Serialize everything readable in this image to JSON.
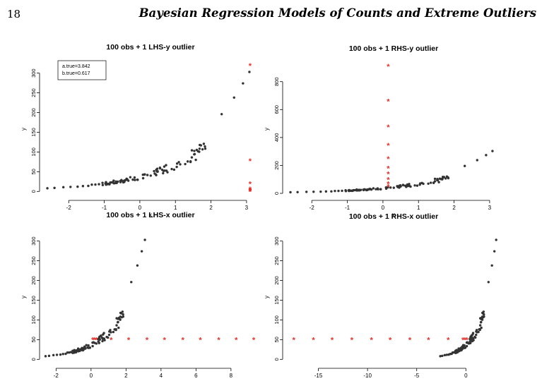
{
  "header": {
    "page_number": "18",
    "running_title": "Bayesian Regression Models of Counts and Extreme Outliers"
  },
  "colors": {
    "points": "#333333",
    "outliers": "#e8302a",
    "axis": "#000000"
  },
  "chart_data": [
    {
      "type": "scatter",
      "title": "100 obs + 1 LHS-y outlier",
      "xlabel": "x",
      "ylabel": "y",
      "xlim": [
        -2.7,
        3.3
      ],
      "ylim": [
        -12,
        328
      ],
      "xticks": [
        -2,
        -1,
        0,
        1,
        2,
        3
      ],
      "yticks": [
        0,
        50,
        100,
        150,
        200,
        250,
        300
      ],
      "legend": {
        "position": "top-left",
        "entries": [
          "a.true=3.842",
          "b.true=0.617"
        ]
      },
      "outlier_marker": "*",
      "outliers": [
        {
          "x": 3.1,
          "y": 0
        },
        {
          "x": 3.1,
          "y": 1
        },
        {
          "x": 3.1,
          "y": 2
        },
        {
          "x": 3.1,
          "y": 3
        },
        {
          "x": 3.1,
          "y": 4
        },
        {
          "x": 3.1,
          "y": 6
        },
        {
          "x": 3.1,
          "y": 20
        },
        {
          "x": 3.1,
          "y": 78
        },
        {
          "x": 3.1,
          "y": 319
        }
      ]
    },
    {
      "type": "scatter",
      "title": "100 obs + 1 RHS-y outlier",
      "xlabel": "x",
      "ylabel": "y",
      "xlim": [
        -2.7,
        3.3
      ],
      "ylim": [
        -20,
        940
      ],
      "xticks": [
        -2,
        -1,
        0,
        1,
        2,
        3
      ],
      "yticks": [
        0,
        200,
        400,
        600,
        800
      ],
      "outlier_marker": "*",
      "outliers": [
        {
          "x": 0.15,
          "y": 50
        },
        {
          "x": 0.15,
          "y": 70
        },
        {
          "x": 0.15,
          "y": 100
        },
        {
          "x": 0.15,
          "y": 140
        },
        {
          "x": 0.15,
          "y": 180
        },
        {
          "x": 0.15,
          "y": 250
        },
        {
          "x": 0.15,
          "y": 345
        },
        {
          "x": 0.15,
          "y": 475
        },
        {
          "x": 0.15,
          "y": 660
        },
        {
          "x": 0.15,
          "y": 910
        }
      ]
    },
    {
      "type": "scatter",
      "title": "100 obs + 1 LHS-x outlier",
      "xlabel": "x",
      "ylabel": "y",
      "xlim": [
        -2.7,
        9.5
      ],
      "ylim": [
        -12,
        328
      ],
      "xticks": [
        -2,
        0,
        2,
        4,
        6,
        8
      ],
      "yticks": [
        0,
        50,
        100,
        150,
        200,
        250,
        300
      ],
      "outlier_marker": "*",
      "outliers": [
        {
          "x": 0.1,
          "y": 50
        },
        {
          "x": 0.2,
          "y": 50
        },
        {
          "x": 0.3,
          "y": 50
        },
        {
          "x": 1.15,
          "y": 50
        },
        {
          "x": 2.15,
          "y": 50
        },
        {
          "x": 3.2,
          "y": 50
        },
        {
          "x": 4.2,
          "y": 50
        },
        {
          "x": 5.25,
          "y": 50
        },
        {
          "x": 6.25,
          "y": 50
        },
        {
          "x": 7.3,
          "y": 50
        },
        {
          "x": 8.3,
          "y": 50
        },
        {
          "x": 9.3,
          "y": 50
        }
      ]
    },
    {
      "type": "scatter",
      "title": "100 obs + 1 RHS-x outlier",
      "xlabel": "x",
      "ylabel": "y",
      "xlim": [
        -18.2,
        3.5
      ],
      "ylim": [
        -12,
        328
      ],
      "xticks": [
        -15,
        -10,
        -5,
        0
      ],
      "yticks": [
        0,
        50,
        100,
        150,
        200,
        250,
        300
      ],
      "outlier_marker": "*",
      "outliers": [
        {
          "x": 0.1,
          "y": 50
        },
        {
          "x": -0.1,
          "y": 50
        },
        {
          "x": -0.3,
          "y": 50
        },
        {
          "x": -1.8,
          "y": 50
        },
        {
          "x": -3.8,
          "y": 50
        },
        {
          "x": -5.7,
          "y": 50
        },
        {
          "x": -7.7,
          "y": 50
        },
        {
          "x": -9.6,
          "y": 50
        },
        {
          "x": -11.6,
          "y": 50
        },
        {
          "x": -13.6,
          "y": 50
        },
        {
          "x": -15.5,
          "y": 50
        },
        {
          "x": -17.5,
          "y": 50
        }
      ]
    }
  ]
}
